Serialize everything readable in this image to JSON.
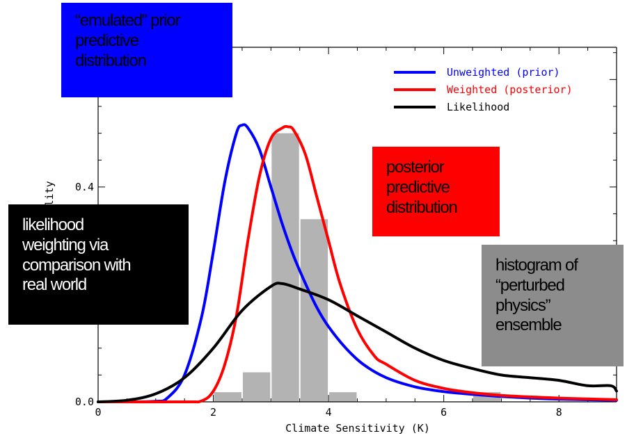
{
  "chart_data": {
    "type": "line",
    "title": "",
    "xlabel": "Climate Sensitivity (K)",
    "ylabel": "Probability",
    "xlim": [
      0,
      9
    ],
    "ylim": [
      0,
      0.66
    ],
    "x_ticks": [
      0,
      2,
      4,
      6,
      8
    ],
    "y_ticks": [
      0.0,
      0.4
    ],
    "grid": false,
    "legend_position": "top-right",
    "histogram": {
      "name": "histogram of “perturbed physics” ensemble",
      "color": "#b3b3b3",
      "bin_width": 0.5,
      "bins": [
        {
          "x0": 2.0,
          "value": 0.018
        },
        {
          "x0": 2.5,
          "value": 0.055
        },
        {
          "x0": 3.0,
          "value": 0.5
        },
        {
          "x0": 3.5,
          "value": 0.34
        },
        {
          "x0": 4.0,
          "value": 0.018
        },
        {
          "x0": 6.5,
          "value": 0.018
        }
      ]
    },
    "series": [
      {
        "name": "Unweighted (prior)",
        "color": "#0000ff",
        "x": [
          0,
          0.5,
          1.0,
          1.2,
          1.5,
          1.8,
          2.0,
          2.2,
          2.4,
          2.5,
          2.6,
          2.8,
          3.0,
          3.2,
          3.4,
          3.6,
          3.8,
          4.0,
          4.3,
          4.6,
          5.0,
          5.5,
          6.0,
          6.5,
          7.0,
          7.5,
          8.0,
          9.0
        ],
        "y": [
          0,
          0,
          0.001,
          0.007,
          0.05,
          0.16,
          0.28,
          0.41,
          0.5,
          0.515,
          0.51,
          0.47,
          0.4,
          0.33,
          0.27,
          0.22,
          0.175,
          0.14,
          0.1,
          0.07,
          0.045,
          0.028,
          0.019,
          0.014,
          0.01,
          0.007,
          0.005,
          0.003
        ]
      },
      {
        "name": "Weighted (posterior)",
        "color": "#ff0000",
        "x": [
          0,
          1.5,
          1.8,
          2.0,
          2.2,
          2.4,
          2.6,
          2.8,
          3.0,
          3.2,
          3.3,
          3.4,
          3.6,
          3.8,
          4.0,
          4.2,
          4.5,
          4.8,
          5.0,
          5.5,
          6.0,
          6.5,
          7.0,
          8.0,
          9.0
        ],
        "y": [
          0,
          0,
          0.002,
          0.02,
          0.07,
          0.16,
          0.3,
          0.42,
          0.49,
          0.51,
          0.512,
          0.505,
          0.46,
          0.38,
          0.3,
          0.22,
          0.135,
          0.085,
          0.07,
          0.04,
          0.025,
          0.017,
          0.012,
          0.007,
          0.004
        ]
      },
      {
        "name": "Likelihood",
        "color": "#000000",
        "x": [
          0,
          0.5,
          1.0,
          1.5,
          2.0,
          2.5,
          3.0,
          3.2,
          3.5,
          4.0,
          4.5,
          5.0,
          5.5,
          6.0,
          6.5,
          7.0,
          7.5,
          8.0,
          8.5,
          8.9,
          9.0
        ],
        "y": [
          0,
          0.003,
          0.015,
          0.045,
          0.1,
          0.17,
          0.215,
          0.22,
          0.21,
          0.19,
          0.16,
          0.13,
          0.1,
          0.077,
          0.062,
          0.05,
          0.045,
          0.04,
          0.03,
          0.03,
          0.02
        ]
      }
    ]
  },
  "callouts": {
    "prior": {
      "lines": [
        "“emulated” prior",
        "predictive",
        "distribution"
      ],
      "bg": "#0000ff"
    },
    "posterior": {
      "lines": [
        "posterior",
        "predictive",
        "distribution"
      ],
      "bg": "#ff0000"
    },
    "likelihood": {
      "lines": [
        "likelihood",
        "weighting via",
        "comparison with",
        "real world"
      ],
      "bg": "#000000",
      "fg": "#ffffff"
    },
    "histogram": {
      "lines": [
        "histogram of",
        "“perturbed",
        "physics”",
        "ensemble"
      ],
      "bg": "#8c8c8c"
    }
  }
}
